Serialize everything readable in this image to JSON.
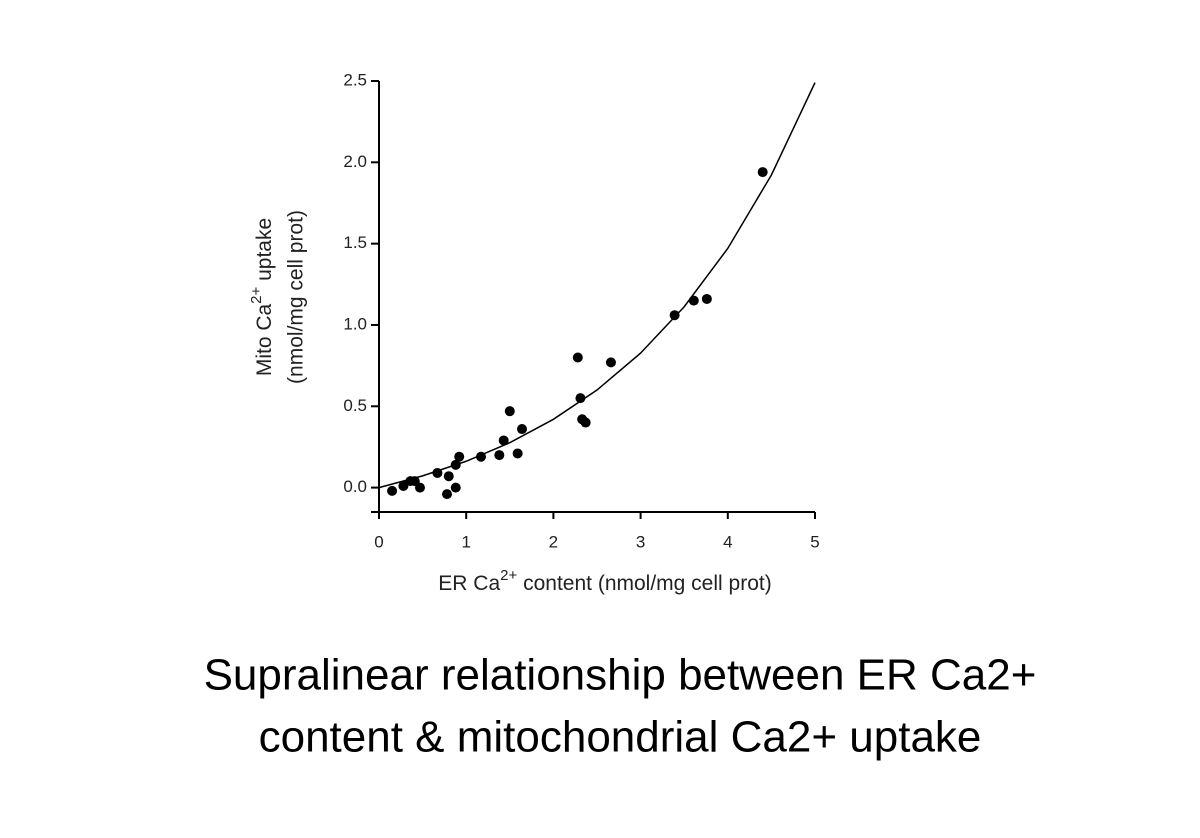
{
  "chart_data": {
    "type": "scatter",
    "x_label": [
      "ER Ca",
      "2+",
      " content (nmol/mg cell prot)"
    ],
    "y_label": [
      [
        "Mito Ca",
        "2+",
        " uptake"
      ],
      "(nmol/mg cell prot)"
    ],
    "xlim": [
      0,
      5
    ],
    "ylim": [
      -0.15,
      2.5
    ],
    "xticks": [
      0,
      1,
      2,
      3,
      4,
      5
    ],
    "yticks": [
      {
        "value": 0,
        "label": "0.0"
      },
      0.5,
      {
        "value": 1,
        "label": "1.0"
      },
      1.5,
      {
        "value": 2,
        "label": "2.0"
      },
      2.5
    ],
    "series": [
      {
        "type": "scatter",
        "color": "#000000",
        "x": [
          0.15,
          0.28,
          0.36,
          0.41,
          0.47,
          0.67,
          0.78,
          0.8,
          0.88,
          0.88,
          0.92,
          1.17,
          1.38,
          1.43,
          1.5,
          1.59,
          1.64,
          2.28,
          2.31,
          2.33,
          2.37,
          2.66,
          3.39,
          3.61,
          3.76,
          4.4
        ],
        "values": [
          -0.02,
          0.01,
          0.04,
          0.04,
          0,
          0.09,
          -0.04,
          0.07,
          0,
          0.14,
          0.19,
          0.19,
          0.2,
          0.29,
          0.47,
          0.21,
          0.36,
          0.8,
          0.55,
          0.42,
          0.4,
          0.77,
          1.06,
          1.15,
          1.16,
          1.94
        ]
      },
      {
        "type": "line",
        "color": "#000000",
        "x": [
          0,
          0.5,
          1,
          1.5,
          2,
          2.5,
          3,
          3.5,
          4,
          4.5,
          5
        ],
        "values": [
          0,
          0.072,
          0.162,
          0.276,
          0.42,
          0.6,
          0.827,
          1.112,
          1.471,
          1.922,
          2.49
        ]
      }
    ]
  },
  "caption": [
    "Supralinear relationship between ER Ca2+",
    "content & mitochondrial Ca2+ uptake"
  ]
}
